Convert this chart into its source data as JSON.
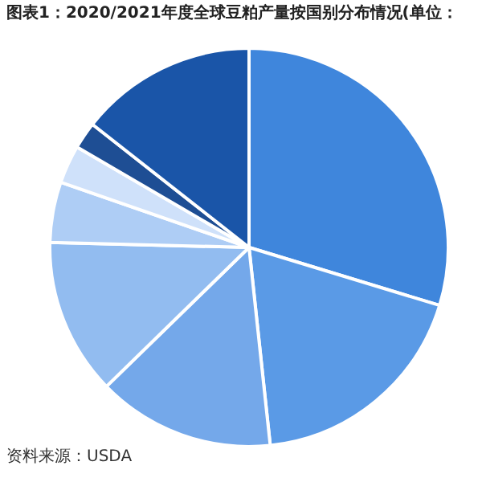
{
  "chart_data": {
    "type": "pie",
    "title": "图表1：2020/2021年度全球豆粕产量按国别分布情况(单位：",
    "categories": [
      null,
      null,
      null,
      null,
      null,
      null,
      null,
      null
    ],
    "values": [
      29.7,
      18.6,
      14.4,
      12.7,
      4.9,
      3.1,
      2.2,
      14.4
    ],
    "colors": [
      "#3f86dc",
      "#5a9ae6",
      "#74a8ea",
      "#92bcf0",
      "#aecdf5",
      "#cfe1fa",
      "#1e4e94",
      "#1a55a8"
    ],
    "annotations": [
      "资料来源：USDA"
    ]
  }
}
